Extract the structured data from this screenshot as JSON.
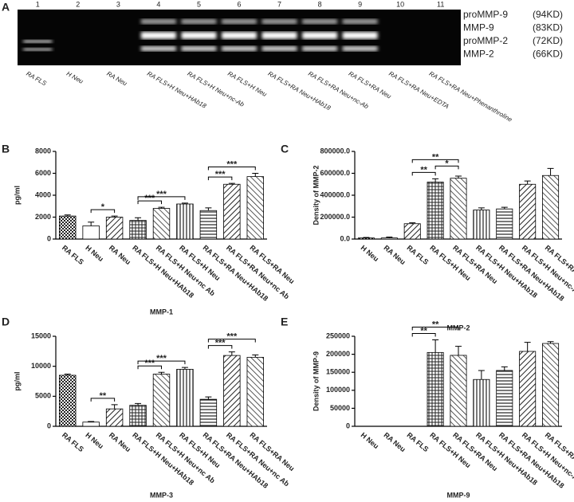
{
  "gel": {
    "panel": "A",
    "lanes": [
      {
        "number": "1",
        "label": "RA FLS"
      },
      {
        "number": "2",
        "label": "H Neu"
      },
      {
        "number": "3",
        "label": "RA Neu"
      },
      {
        "number": "4",
        "label": "RA FLS+H Neu+HAb18"
      },
      {
        "number": "5",
        "label": "RA FLS+H Neu+nc-Ab"
      },
      {
        "number": "6",
        "label": "RA FLS+H Neu"
      },
      {
        "number": "7",
        "label": "RA FLS+RA Neu+HAb18"
      },
      {
        "number": "8",
        "label": "RA FLS+RA Neu+nc-Ab"
      },
      {
        "number": "9",
        "label": "RA FLS+RA Neu"
      },
      {
        "number": "10",
        "label": "RA FLS+RA Neu+EDTA"
      },
      {
        "number": "11",
        "label": "RA FLS+RA Neu+Phenanthroline"
      }
    ],
    "bands": [
      {
        "name": "proMMP-9",
        "size": "(94KD)"
      },
      {
        "name": "MMP-9",
        "size": "(83KD)"
      },
      {
        "name": "proMMP-2",
        "size": "(72KD)"
      },
      {
        "name": "MMP-2",
        "size": "(66KD)"
      }
    ]
  },
  "chart_data": [
    {
      "type": "bar",
      "panel": "B",
      "y_label": "pg/ml",
      "x_label": "MMP-1",
      "categories": [
        "RA FLS",
        "H Neu",
        "RA Neu",
        "RA FLS+H Neu+HAb18",
        "RA FLS+H Neu+nc Ab",
        "RA FLS+H Neu",
        "RA FLS+RA Neu+HAb18",
        "RA FLS+RA Neu+nc Ab",
        "RA FLS+RA Neu"
      ],
      "values": [
        2100,
        1200,
        2000,
        1700,
        2800,
        3200,
        2600,
        5000,
        5700
      ],
      "errors": [
        100,
        350,
        100,
        250,
        100,
        80,
        250,
        80,
        300
      ],
      "ylim": [
        0,
        8000
      ],
      "yticks": [
        0,
        2000,
        4000,
        6000,
        8000
      ],
      "annotations": [
        {
          "text": "*",
          "between": [
            1,
            2
          ]
        },
        {
          "text": "***",
          "between": [
            3,
            4
          ]
        },
        {
          "text": "***",
          "between": [
            3,
            5
          ]
        },
        {
          "text": "***",
          "between": [
            6,
            7
          ]
        },
        {
          "text": "***",
          "between": [
            6,
            8
          ]
        }
      ]
    },
    {
      "type": "bar",
      "panel": "C",
      "y_label": "Density of MMP-2",
      "x_label": "MMP-2",
      "categories": [
        "H Neu",
        "RA Neu",
        "RA FLS",
        "RA FLS+H Neu",
        "RA FLS+RA Neu",
        "RA FLS+H Neu+HAb18",
        "RA FLS+RA Neu+HAb18",
        "RA FLS+H Neu+nc-Ab",
        "RA FLS+RA Neu+nc-Ab"
      ],
      "values": [
        10000,
        10000,
        140000,
        520000,
        555000,
        265000,
        275000,
        500000,
        580000
      ],
      "errors": [
        5000,
        8000,
        8000,
        30000,
        20000,
        20000,
        15000,
        30000,
        65000
      ],
      "ylim": [
        0,
        800000
      ],
      "yticks": [
        {
          "value": 0,
          "label": "0.0"
        },
        {
          "value": 200000,
          "label": "200000.0"
        },
        {
          "value": 400000,
          "label": "400000.0"
        },
        {
          "value": 600000,
          "label": "600000.0"
        },
        {
          "value": 800000,
          "label": "800000.0"
        }
      ],
      "annotations": [
        {
          "text": "**",
          "between": [
            2,
            3
          ]
        },
        {
          "text": "*",
          "between": [
            3,
            4
          ]
        },
        {
          "text": "**",
          "between": [
            2,
            4
          ]
        }
      ]
    },
    {
      "type": "bar",
      "panel": "D",
      "y_label": "pg/ml",
      "x_label": "MMP-3",
      "categories": [
        "RA FLS",
        "H Neu",
        "RA Neu",
        "RA FLS+H Neu+HAb18",
        "RA FLS+H Neu+nc Ab",
        "RA FLS+H Neu",
        "RA FLS+RA Neu+HAb18",
        "RA FLS+RA Neu+nc Ab",
        "RA FLS+RA Neu"
      ],
      "values": [
        8500,
        700,
        2900,
        3500,
        8700,
        9500,
        4500,
        11800,
        11500
      ],
      "errors": [
        200,
        100,
        700,
        300,
        300,
        300,
        400,
        600,
        400
      ],
      "ylim": [
        0,
        15000
      ],
      "yticks": [
        0,
        5000,
        10000,
        15000
      ],
      "annotations": [
        {
          "text": "**",
          "between": [
            1,
            2
          ]
        },
        {
          "text": "***",
          "between": [
            3,
            4
          ]
        },
        {
          "text": "***",
          "between": [
            3,
            5
          ]
        },
        {
          "text": "***",
          "between": [
            6,
            7
          ]
        },
        {
          "text": "***",
          "between": [
            6,
            8
          ]
        }
      ]
    },
    {
      "type": "bar",
      "panel": "E",
      "y_label": "Density of MMP-9",
      "x_label": "MMP-9",
      "categories": [
        "H Neu",
        "RA Neu",
        "RA FLS",
        "RA FLS+H Neu",
        "RA FLS+RA Neu",
        "RA FLS+H Neu+HAb18",
        "RA FLS+RA Neu+HAb18",
        "RA FLS+H Neu+nc-Ab",
        "RA FLS+RA Neu+nc-Ab"
      ],
      "values": [
        0,
        0,
        0,
        205000,
        197000,
        130000,
        155000,
        208000,
        230000
      ],
      "errors": [
        0,
        0,
        0,
        35000,
        25000,
        25000,
        10000,
        25000,
        5000
      ],
      "ylim": [
        0,
        250000
      ],
      "yticks": [
        0,
        50000,
        100000,
        150000,
        200000,
        250000
      ],
      "annotations": [
        {
          "text": "**",
          "between": [
            2,
            3
          ]
        },
        {
          "text": "**",
          "between": [
            2,
            4
          ]
        }
      ]
    }
  ]
}
